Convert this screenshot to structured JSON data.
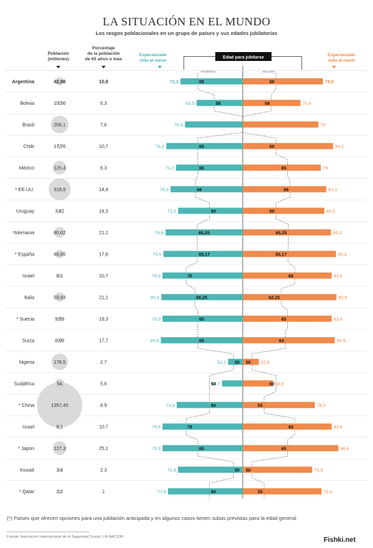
{
  "title": "LA SITUACIÓN EN EL MUNDO",
  "subtitle": "Los rasgos poblacionales en un grupo de países y sus edades jubilatorias",
  "columns": {
    "population": "Población (millones)",
    "pct65": "Porcentaje de la población de 65 años o más",
    "life_male": "Esperanzade vida al nacer",
    "retire_age": "Edad para jubilarse",
    "life_female": "Esperanzade vida al nacer",
    "male": "HOMBRE",
    "female": "MUJER"
  },
  "footnote": "(*) Países que ofrecen opciones para una jubilación anticipada y en algunos casos tienen subas previstas para la edad general",
  "source": "Fuente: Asociación Internacional de la Seguridad Social / LA NACION",
  "watermark": "Fishki.net",
  "colors": {
    "male": "#4cb6b4",
    "female": "#ef8a4c",
    "bubble": "#d4d4d4"
  },
  "chart_data": {
    "type": "bar",
    "countries": [
      {
        "name": "Argentina",
        "population": "42,98",
        "pct65": "10,8",
        "life_male": "72,3",
        "retire_male": "65",
        "retire_female": "60",
        "life_female": "79,9",
        "highlight": true
      },
      {
        "name": "Bolivia",
        "population": "10,56",
        "pct65": "6,3",
        "life_male": "65,5",
        "retire_male": "58",
        "retire_female": "58",
        "life_female": "70,4"
      },
      {
        "name": "Brasil",
        "population": "206,1",
        "pct65": "7,6",
        "life_male": "70,4",
        "retire_male": "",
        "retire_female": "",
        "life_female": "78"
      },
      {
        "name": "Chile",
        "population": "17,76",
        "pct65": "10,7",
        "life_male": "78,3",
        "retire_male": "65",
        "retire_female": "60",
        "life_female": "84,2"
      },
      {
        "name": "México",
        "population": "125,4",
        "pct65": "6,3",
        "life_male": "74,2",
        "retire_male": "65",
        "retire_female": "65",
        "life_female": "79"
      },
      {
        "name": "* EE.UU.",
        "population": "318,9",
        "pct65": "14,4",
        "life_male": "76,5",
        "retire_male": "66",
        "retire_female": "66",
        "life_female": "81,3"
      },
      {
        "name": "Uruguay",
        "population": "3,42",
        "pct65": "14,3",
        "life_male": "73,3",
        "retire_male": "60",
        "retire_female": "60",
        "life_female": "80,5"
      },
      {
        "name": "*Alemania",
        "population": "80,62",
        "pct65": "21,1",
        "life_male": "78,6",
        "retire_male": "65,25",
        "retire_female": "65,25",
        "life_female": "83,3"
      },
      {
        "name": "* España",
        "population": "46,65",
        "pct65": "17,8",
        "life_male": "79,5",
        "retire_male": "65,17",
        "retire_female": "65,17",
        "life_female": "85,4"
      },
      {
        "name": "Israel",
        "population": "8,1",
        "pct65": "10,7",
        "life_male": "79,9",
        "retire_male": "70",
        "retire_female": "68",
        "life_female": "83,6"
      },
      {
        "name": "Italia",
        "population": "59,83",
        "pct65": "21,1",
        "life_male": "80,4",
        "retire_male": "66,25",
        "retire_female": "62,25",
        "life_female": "85,6"
      },
      {
        "name": "* Suecia",
        "population": "9,59",
        "pct65": "19,3",
        "life_male": "79,9",
        "retire_male": "65",
        "retire_female": "65",
        "life_female": "83,6"
      },
      {
        "name": "Suiza",
        "population": "8,08",
        "pct65": "17,7",
        "life_male": "80,6",
        "retire_male": "65",
        "retire_female": "64",
        "life_female": "84,9"
      },
      {
        "name": "Nigeria",
        "population": "178,5",
        "pct65": "2.7",
        "life_male": "52,2",
        "retire_male": "50",
        "retire_female": "50",
        "life_female": "52,8"
      },
      {
        "name": "Sudáfrica",
        "population": "54",
        "pct65": "5,6",
        "life_male": "54,7",
        "retire_male": "60",
        "retire_female": "60",
        "life_female": "58,8"
      },
      {
        "name": "* China",
        "population": "1357,40",
        "pct65": "8.9",
        "life_male": "73,9",
        "retire_male": "60",
        "retire_female": "55",
        "life_female": "76,5"
      },
      {
        "name": "Israel",
        "population": "8,1",
        "pct65": "10.7",
        "life_male": "79.9",
        "retire_male": "70",
        "retire_female": "68",
        "life_female": "83.6"
      },
      {
        "name": "* Japón",
        "population": "127,3",
        "pct65": "25.1",
        "life_male": "79.9",
        "retire_male": "65",
        "retire_female": "65",
        "life_female": "86,4"
      },
      {
        "name": "Kuwait",
        "population": "3,4",
        "pct65": "2.3",
        "life_male": "73,4",
        "retire_male": "50",
        "retire_female": "50",
        "life_female": "75,4"
      },
      {
        "name": "* Qatar",
        "population": "2,2",
        "pct65": "1",
        "life_male": "77,6",
        "retire_male": "60",
        "retire_female": "55",
        "life_female": "79,3"
      }
    ]
  }
}
